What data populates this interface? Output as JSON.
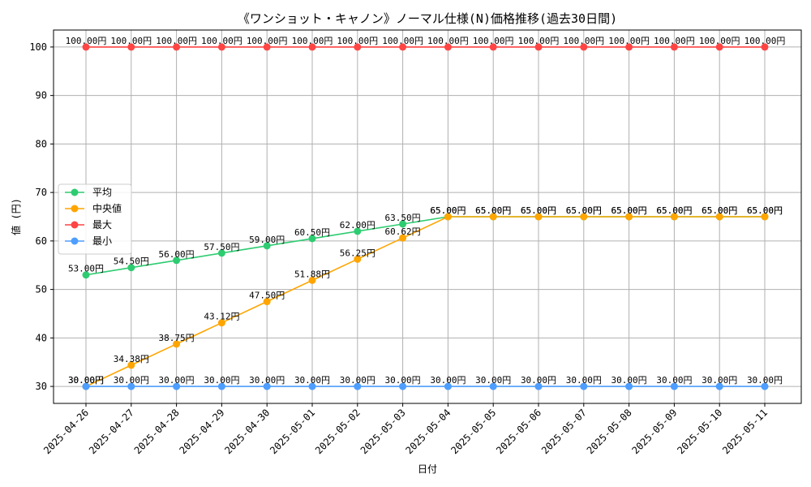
{
  "chart_data": {
    "type": "line",
    "title": "《ワンショット・キャノン》ノーマル仕様(N)価格推移(過去30日間)",
    "xlabel": "日付",
    "ylabel": "値 (円)",
    "value_suffix": "円",
    "ylim": [
      26.5,
      103.5
    ],
    "yticks": [
      30,
      40,
      50,
      60,
      70,
      80,
      90,
      100
    ],
    "grid": true,
    "legend_position": "center-left",
    "categories": [
      "2025-04-26",
      "2025-04-27",
      "2025-04-28",
      "2025-04-29",
      "2025-04-30",
      "2025-05-01",
      "2025-05-02",
      "2025-05-03",
      "2025-05-04",
      "2025-05-05",
      "2025-05-06",
      "2025-05-07",
      "2025-05-08",
      "2025-05-09",
      "2025-05-10",
      "2025-05-11"
    ],
    "series": [
      {
        "name": "平均",
        "color": "#2ecc71",
        "values": [
          53.0,
          54.5,
          56.0,
          57.5,
          59.0,
          60.5,
          62.0,
          63.5,
          65.0,
          65.0,
          65.0,
          65.0,
          65.0,
          65.0,
          65.0,
          65.0
        ],
        "labels": [
          "53.00円",
          "54.50円",
          "56.00円",
          "57.50円",
          "59.00円",
          "60.50円",
          "62.00円",
          "63.50円",
          "65.00円",
          "65.00円",
          "65.00円",
          "65.00円",
          "65.00円",
          "65.00円",
          "65.00円",
          "65.00円"
        ]
      },
      {
        "name": "中央値",
        "color": "#ffa500",
        "values": [
          30.0,
          34.38,
          38.75,
          43.12,
          47.5,
          51.88,
          56.25,
          60.62,
          65.0,
          65.0,
          65.0,
          65.0,
          65.0,
          65.0,
          65.0,
          65.0
        ],
        "labels": [
          "30.00円",
          "34.38円",
          "38.75円",
          "43.12円",
          "47.50円",
          "51.88円",
          "56.25円",
          "60.62円",
          "65.00円",
          "65.00円",
          "65.00円",
          "65.00円",
          "65.00円",
          "65.00円",
          "65.00円",
          "65.00円"
        ]
      },
      {
        "name": "最大",
        "color": "#ff4444",
        "values": [
          100,
          100,
          100,
          100,
          100,
          100,
          100,
          100,
          100,
          100,
          100,
          100,
          100,
          100,
          100,
          100
        ],
        "labels": [
          "100.00円",
          "100.00円",
          "100.00円",
          "100.00円",
          "100.00円",
          "100.00円",
          "100.00円",
          "100.00円",
          "100.00円",
          "100.00円",
          "100.00円",
          "100.00円",
          "100.00円",
          "100.00円",
          "100.00円",
          "100.00円"
        ]
      },
      {
        "name": "最小",
        "color": "#4d9eff",
        "values": [
          30,
          30,
          30,
          30,
          30,
          30,
          30,
          30,
          30,
          30,
          30,
          30,
          30,
          30,
          30,
          30
        ],
        "labels": [
          "30.00円",
          "30.00円",
          "30.00円",
          "30.00円",
          "30.00円",
          "30.00円",
          "30.00円",
          "30.00円",
          "30.00円",
          "30.00円",
          "30.00円",
          "30.00円",
          "30.00円",
          "30.00円",
          "30.00円",
          "30.00円"
        ]
      }
    ]
  }
}
